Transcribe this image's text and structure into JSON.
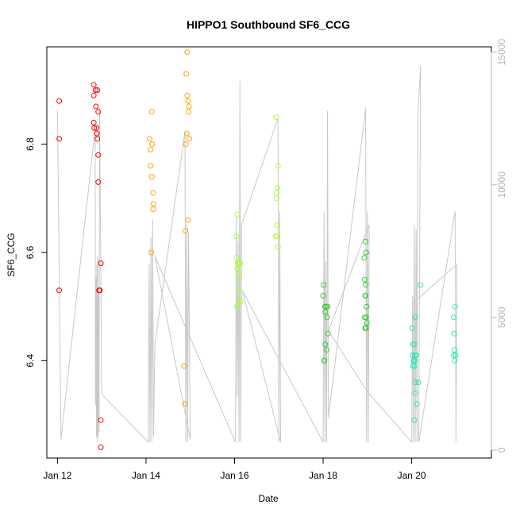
{
  "chart_data": {
    "type": "scatter",
    "title": "HIPPO1 Southbound SF6_CCG",
    "xlabel": "Date",
    "ylabel": "SF6_CCG",
    "x_unit": "days",
    "xlim": [
      11.76,
      21.8
    ],
    "ylim": [
      6.22,
      6.98
    ],
    "y2lim": [
      -300,
      15200
    ],
    "x_ticks": [
      {
        "value": 12,
        "label": "Jan 12"
      },
      {
        "value": 14,
        "label": "Jan 14"
      },
      {
        "value": 16,
        "label": "Jan 16"
      },
      {
        "value": 18,
        "label": "Jan 18"
      },
      {
        "value": 20,
        "label": "Jan 20"
      }
    ],
    "y_ticks": [
      {
        "value": 6.4,
        "label": "6.4"
      },
      {
        "value": 6.6,
        "label": "6.6"
      },
      {
        "value": 6.8,
        "label": "6.8"
      }
    ],
    "y2_ticks": [
      {
        "value": 0,
        "label": "0"
      },
      {
        "value": 5000,
        "label": "5000"
      },
      {
        "value": 10000,
        "label": "10000"
      },
      {
        "value": 15000,
        "label": "15000"
      }
    ],
    "grid": false,
    "legend": "none",
    "colors": {
      "axis": "#000000",
      "secondary_axis": "#b4b4b4",
      "altitude_line": "#c8c8c8"
    },
    "points": [
      {
        "x": 12.04,
        "y": 6.88,
        "color": "#ff0000"
      },
      {
        "x": 12.04,
        "y": 6.81,
        "color": "#ff0000"
      },
      {
        "x": 12.04,
        "y": 6.53,
        "color": "#ff0000"
      },
      {
        "x": 12.82,
        "y": 6.91,
        "color": "#ff0000"
      },
      {
        "x": 12.86,
        "y": 6.9,
        "color": "#ff0000"
      },
      {
        "x": 12.9,
        "y": 6.9,
        "color": "#ff0000"
      },
      {
        "x": 12.82,
        "y": 6.89,
        "color": "#ff0000"
      },
      {
        "x": 12.87,
        "y": 6.87,
        "color": "#ff0000"
      },
      {
        "x": 12.92,
        "y": 6.86,
        "color": "#ff0000"
      },
      {
        "x": 12.82,
        "y": 6.84,
        "color": "#ff0000"
      },
      {
        "x": 12.83,
        "y": 6.83,
        "color": "#ff0000"
      },
      {
        "x": 12.88,
        "y": 6.83,
        "color": "#ff0000"
      },
      {
        "x": 12.89,
        "y": 6.82,
        "color": "#ff0000"
      },
      {
        "x": 12.9,
        "y": 6.81,
        "color": "#ff0000"
      },
      {
        "x": 12.92,
        "y": 6.78,
        "color": "#ff0000"
      },
      {
        "x": 12.92,
        "y": 6.73,
        "color": "#ff0000"
      },
      {
        "x": 12.98,
        "y": 6.58,
        "color": "#ff0000"
      },
      {
        "x": 12.94,
        "y": 6.53,
        "color": "#ff0000"
      },
      {
        "x": 12.96,
        "y": 6.53,
        "color": "#ff0000"
      },
      {
        "x": 12.98,
        "y": 6.29,
        "color": "#ff0000"
      },
      {
        "x": 12.98,
        "y": 6.24,
        "color": "#ff0000"
      },
      {
        "x": 14.13,
        "y": 6.86,
        "color": "#ffa500"
      },
      {
        "x": 14.08,
        "y": 6.81,
        "color": "#ffa500"
      },
      {
        "x": 14.14,
        "y": 6.8,
        "color": "#ffa500"
      },
      {
        "x": 14.1,
        "y": 6.79,
        "color": "#ffa500"
      },
      {
        "x": 14.1,
        "y": 6.76,
        "color": "#ffa500"
      },
      {
        "x": 14.13,
        "y": 6.74,
        "color": "#ffa500"
      },
      {
        "x": 14.16,
        "y": 6.71,
        "color": "#ffa500"
      },
      {
        "x": 14.17,
        "y": 6.69,
        "color": "#ffa500"
      },
      {
        "x": 14.16,
        "y": 6.68,
        "color": "#ffa500"
      },
      {
        "x": 14.12,
        "y": 6.6,
        "color": "#ffa500"
      },
      {
        "x": 14.93,
        "y": 6.97,
        "color": "#ffa500"
      },
      {
        "x": 14.91,
        "y": 6.93,
        "color": "#ffa500"
      },
      {
        "x": 14.93,
        "y": 6.89,
        "color": "#ffa500"
      },
      {
        "x": 14.95,
        "y": 6.88,
        "color": "#ffa500"
      },
      {
        "x": 14.97,
        "y": 6.87,
        "color": "#ffa500"
      },
      {
        "x": 14.96,
        "y": 6.86,
        "color": "#ffa500"
      },
      {
        "x": 14.92,
        "y": 6.82,
        "color": "#ffa500"
      },
      {
        "x": 14.98,
        "y": 6.81,
        "color": "#ffa500"
      },
      {
        "x": 14.9,
        "y": 6.8,
        "color": "#ffa500"
      },
      {
        "x": 14.95,
        "y": 6.66,
        "color": "#ffa500"
      },
      {
        "x": 14.89,
        "y": 6.64,
        "color": "#ffa500"
      },
      {
        "x": 14.86,
        "y": 6.39,
        "color": "#ffa500"
      },
      {
        "x": 14.88,
        "y": 6.32,
        "color": "#ffa500"
      },
      {
        "x": 16.06,
        "y": 6.67,
        "color": "#adff2f"
      },
      {
        "x": 16.04,
        "y": 6.63,
        "color": "#adff2f"
      },
      {
        "x": 16.04,
        "y": 6.59,
        "color": "#adff2f"
      },
      {
        "x": 16.07,
        "y": 6.58,
        "color": "#adff2f"
      },
      {
        "x": 16.1,
        "y": 6.58,
        "color": "#adff2f"
      },
      {
        "x": 16.13,
        "y": 6.58,
        "color": "#adff2f"
      },
      {
        "x": 16.06,
        "y": 6.57,
        "color": "#adff2f"
      },
      {
        "x": 16.09,
        "y": 6.56,
        "color": "#adff2f"
      },
      {
        "x": 16.11,
        "y": 6.55,
        "color": "#adff2f"
      },
      {
        "x": 16.08,
        "y": 6.53,
        "color": "#adff2f"
      },
      {
        "x": 16.1,
        "y": 6.51,
        "color": "#adff2f"
      },
      {
        "x": 16.14,
        "y": 6.51,
        "color": "#adff2f"
      },
      {
        "x": 16.05,
        "y": 6.5,
        "color": "#adff2f"
      },
      {
        "x": 16.94,
        "y": 6.85,
        "color": "#adff2f"
      },
      {
        "x": 16.98,
        "y": 6.76,
        "color": "#adff2f"
      },
      {
        "x": 16.97,
        "y": 6.72,
        "color": "#adff2f"
      },
      {
        "x": 16.95,
        "y": 6.71,
        "color": "#adff2f"
      },
      {
        "x": 16.95,
        "y": 6.7,
        "color": "#adff2f"
      },
      {
        "x": 16.96,
        "y": 6.65,
        "color": "#adff2f"
      },
      {
        "x": 16.93,
        "y": 6.63,
        "color": "#adff2f"
      },
      {
        "x": 16.95,
        "y": 6.63,
        "color": "#adff2f"
      },
      {
        "x": 16.98,
        "y": 6.61,
        "color": "#adff2f"
      },
      {
        "x": 18.01,
        "y": 6.54,
        "color": "#32cd32"
      },
      {
        "x": 18.0,
        "y": 6.52,
        "color": "#32cd32"
      },
      {
        "x": 18.04,
        "y": 6.5,
        "color": "#32cd32"
      },
      {
        "x": 18.07,
        "y": 6.5,
        "color": "#32cd32"
      },
      {
        "x": 18.1,
        "y": 6.5,
        "color": "#32cd32"
      },
      {
        "x": 18.05,
        "y": 6.49,
        "color": "#32cd32"
      },
      {
        "x": 18.09,
        "y": 6.48,
        "color": "#32cd32"
      },
      {
        "x": 18.11,
        "y": 6.45,
        "color": "#32cd32"
      },
      {
        "x": 18.05,
        "y": 6.43,
        "color": "#32cd32"
      },
      {
        "x": 18.08,
        "y": 6.42,
        "color": "#32cd32"
      },
      {
        "x": 18.02,
        "y": 6.4,
        "color": "#32cd32"
      },
      {
        "x": 18.03,
        "y": 6.4,
        "color": "#32cd32"
      },
      {
        "x": 18.96,
        "y": 6.62,
        "color": "#32cd32"
      },
      {
        "x": 18.97,
        "y": 6.6,
        "color": "#32cd32"
      },
      {
        "x": 18.93,
        "y": 6.59,
        "color": "#32cd32"
      },
      {
        "x": 18.94,
        "y": 6.55,
        "color": "#32cd32"
      },
      {
        "x": 18.96,
        "y": 6.54,
        "color": "#32cd32"
      },
      {
        "x": 18.95,
        "y": 6.52,
        "color": "#32cd32"
      },
      {
        "x": 18.96,
        "y": 6.52,
        "color": "#32cd32"
      },
      {
        "x": 18.98,
        "y": 6.5,
        "color": "#32cd32"
      },
      {
        "x": 18.94,
        "y": 6.48,
        "color": "#32cd32"
      },
      {
        "x": 18.97,
        "y": 6.48,
        "color": "#32cd32"
      },
      {
        "x": 18.99,
        "y": 6.47,
        "color": "#32cd32"
      },
      {
        "x": 18.95,
        "y": 6.46,
        "color": "#32cd32"
      },
      {
        "x": 18.97,
        "y": 6.46,
        "color": "#32cd32"
      },
      {
        "x": 20.01,
        "y": 6.46,
        "color": "#2ee8b6"
      },
      {
        "x": 20.08,
        "y": 6.48,
        "color": "#2ee8b6"
      },
      {
        "x": 20.03,
        "y": 6.43,
        "color": "#2ee8b6"
      },
      {
        "x": 20.06,
        "y": 6.43,
        "color": "#2ee8b6"
      },
      {
        "x": 20.02,
        "y": 6.41,
        "color": "#2ee8b6"
      },
      {
        "x": 20.07,
        "y": 6.41,
        "color": "#2ee8b6"
      },
      {
        "x": 20.1,
        "y": 6.41,
        "color": "#2ee8b6"
      },
      {
        "x": 20.04,
        "y": 6.4,
        "color": "#2ee8b6"
      },
      {
        "x": 20.05,
        "y": 6.4,
        "color": "#2ee8b6"
      },
      {
        "x": 20.08,
        "y": 6.4,
        "color": "#2ee8b6"
      },
      {
        "x": 20.03,
        "y": 6.39,
        "color": "#2ee8b6"
      },
      {
        "x": 20.06,
        "y": 6.39,
        "color": "#2ee8b6"
      },
      {
        "x": 20.09,
        "y": 6.36,
        "color": "#2ee8b6"
      },
      {
        "x": 20.15,
        "y": 6.36,
        "color": "#2ee8b6"
      },
      {
        "x": 20.08,
        "y": 6.34,
        "color": "#2ee8b6"
      },
      {
        "x": 20.12,
        "y": 6.32,
        "color": "#2ee8b6"
      },
      {
        "x": 20.06,
        "y": 6.29,
        "color": "#2ee8b6"
      },
      {
        "x": 20.2,
        "y": 6.54,
        "color": "#2ee8b6"
      },
      {
        "x": 20.98,
        "y": 6.5,
        "color": "#2ee8b6"
      },
      {
        "x": 20.95,
        "y": 6.48,
        "color": "#2ee8b6"
      },
      {
        "x": 20.96,
        "y": 6.45,
        "color": "#2ee8b6"
      },
      {
        "x": 20.97,
        "y": 6.42,
        "color": "#2ee8b6"
      },
      {
        "x": 20.95,
        "y": 6.41,
        "color": "#2ee8b6"
      },
      {
        "x": 20.99,
        "y": 6.41,
        "color": "#2ee8b6"
      },
      {
        "x": 20.97,
        "y": 6.4,
        "color": "#2ee8b6"
      }
    ],
    "altitude": [
      [
        12.0,
        12800
      ],
      [
        12.08,
        400
      ],
      [
        12.85,
        12100
      ],
      [
        12.86,
        1700
      ],
      [
        12.87,
        6500
      ],
      [
        12.88,
        500
      ],
      [
        12.89,
        7000
      ],
      [
        12.9,
        300
      ],
      [
        12.91,
        7300
      ],
      [
        12.92,
        500
      ],
      [
        12.93,
        6000
      ],
      [
        12.94,
        700
      ],
      [
        12.95,
        12900
      ],
      [
        13.0,
        2100
      ],
      [
        14.05,
        300
      ],
      [
        14.07,
        7000
      ],
      [
        14.09,
        300
      ],
      [
        14.11,
        8000
      ],
      [
        14.13,
        300
      ],
      [
        14.15,
        8700
      ],
      [
        14.17,
        500
      ],
      [
        14.2,
        4000
      ],
      [
        14.88,
        12000
      ],
      [
        14.9,
        300
      ],
      [
        14.92,
        8500
      ],
      [
        14.94,
        300
      ],
      [
        14.96,
        8200
      ],
      [
        15.0,
        400
      ],
      [
        14.2,
        7300
      ],
      [
        16.02,
        300
      ],
      [
        16.04,
        8800
      ],
      [
        16.06,
        2000
      ],
      [
        16.08,
        7900
      ],
      [
        16.1,
        300
      ],
      [
        16.12,
        13900
      ],
      [
        16.14,
        300
      ],
      [
        16.16,
        8500
      ],
      [
        16.98,
        12500
      ],
      [
        17.0,
        300
      ],
      [
        17.02,
        9000
      ],
      [
        17.04,
        300
      ],
      [
        16.18,
        6000
      ],
      [
        18.0,
        300
      ],
      [
        18.02,
        9000
      ],
      [
        18.04,
        300
      ],
      [
        18.06,
        7100
      ],
      [
        18.08,
        300
      ],
      [
        18.1,
        12800
      ],
      [
        18.12,
        1200
      ],
      [
        18.96,
        12900
      ],
      [
        18.98,
        300
      ],
      [
        19.0,
        9000
      ],
      [
        19.02,
        300
      ],
      [
        19.04,
        8500
      ],
      [
        18.12,
        4500
      ],
      [
        19.0,
        2200
      ],
      [
        20.0,
        300
      ],
      [
        20.02,
        5800
      ],
      [
        20.04,
        300
      ],
      [
        20.06,
        8500
      ],
      [
        20.08,
        300
      ],
      [
        20.1,
        8300
      ],
      [
        20.12,
        300
      ],
      [
        20.14,
        12600
      ],
      [
        20.2,
        14500
      ],
      [
        20.16,
        300
      ],
      [
        20.98,
        9000
      ],
      [
        21.0,
        300
      ],
      [
        21.02,
        7000
      ],
      [
        20.0,
        5500
      ]
    ]
  }
}
